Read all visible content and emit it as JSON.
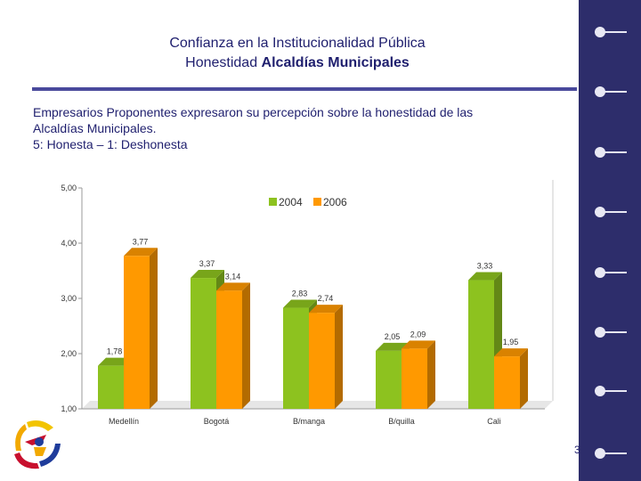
{
  "slide": {
    "title_line1": "Confianza en la Institucionalidad Pública",
    "title_line2_prefix": "Honestidad ",
    "title_line2_bold": "Alcaldías Municipales",
    "description_line1": "Empresarios Proponentes expresaron su percepción sobre la honestidad de las",
    "description_line2": "Alcaldías Municipales.",
    "description_line3": "5: Honesta – 1: Deshonesta",
    "page_number": "3"
  },
  "colors": {
    "series_2004": "#8dc21f",
    "series_2006": "#ff9900",
    "sidebar": "#2d2d6b",
    "text": "#1f1f6e"
  },
  "chart_data": {
    "type": "bar",
    "title": "",
    "xlabel": "",
    "ylabel": "",
    "ylim": [
      1,
      5
    ],
    "yticks": [
      "1,00",
      "2,00",
      "3,00",
      "4,00",
      "5,00"
    ],
    "categories": [
      "Medellín",
      "Bogotá",
      "B/manga",
      "B/quilla",
      "Cali"
    ],
    "series": [
      {
        "name": "2004",
        "values": [
          1.78,
          3.37,
          2.83,
          2.05,
          3.33
        ],
        "labels": [
          "1,78",
          "3,37",
          "2,83",
          "2,05",
          "3,33"
        ]
      },
      {
        "name": "2006",
        "values": [
          3.77,
          3.14,
          2.74,
          2.09,
          1.95
        ],
        "labels": [
          "3,77",
          "3,14",
          "2,74",
          "2,09",
          "1,95"
        ]
      }
    ],
    "legend_position": "top-center"
  }
}
